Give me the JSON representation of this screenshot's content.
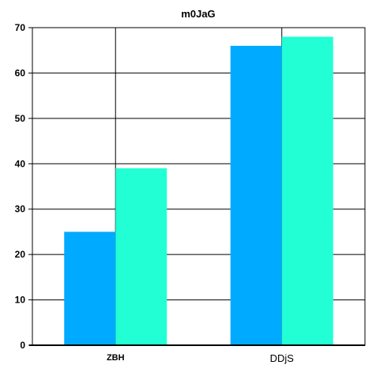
{
  "chart_data": {
    "type": "bar",
    "title": "m0JaG",
    "xlabel": "",
    "ylabel": "",
    "categories": [
      "ZBH",
      "DDjS"
    ],
    "series": [
      {
        "values": [
          25,
          66
        ],
        "color": "#00aaff"
      },
      {
        "values": [
          39,
          68
        ],
        "color": "#22ffd4"
      }
    ],
    "ylim": [
      0,
      70
    ],
    "yticks": [
      0,
      10,
      20,
      30,
      40,
      50,
      60,
      70
    ],
    "grid": true,
    "legend": "none"
  }
}
